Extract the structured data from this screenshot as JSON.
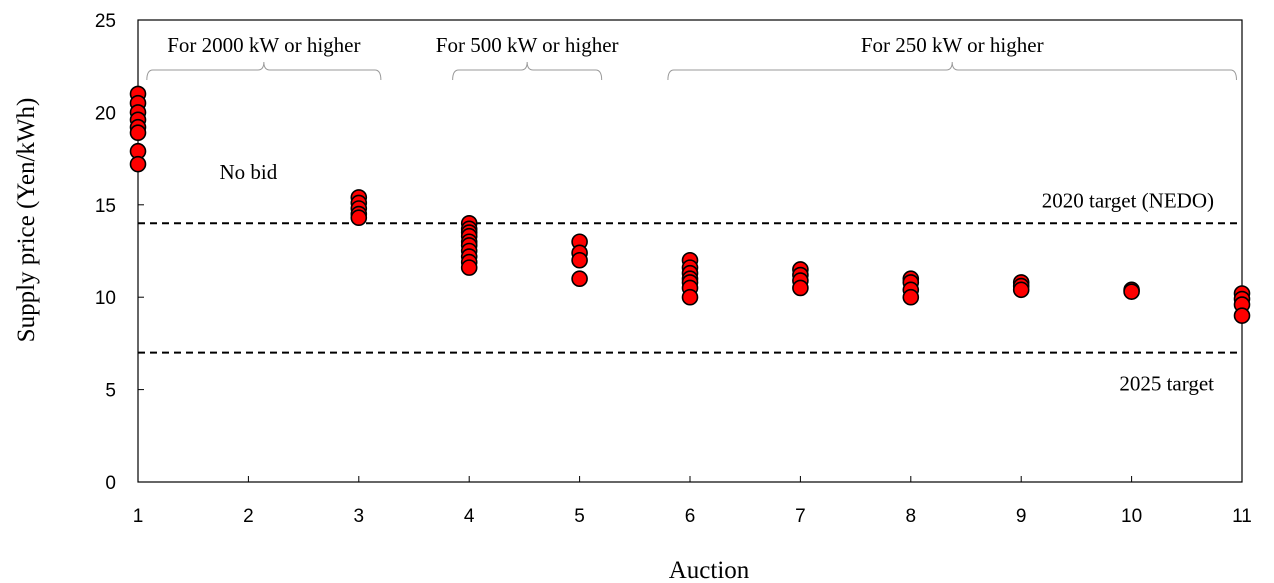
{
  "chart_data": {
    "type": "scatter",
    "xlabel": "Auction",
    "ylabel": "Supply price (Yen/kWh)",
    "xlim": [
      1,
      11
    ],
    "ylim": [
      0,
      25
    ],
    "x_ticks": [
      1,
      2,
      3,
      4,
      5,
      6,
      7,
      8,
      9,
      10,
      11
    ],
    "y_ticks": [
      0,
      5,
      10,
      15,
      20,
      25
    ],
    "grid": false,
    "marker_color": "#ff0000",
    "marker_edge_color": "#000000",
    "series": [
      {
        "points": [
          {
            "x": 1,
            "y": 21.0
          },
          {
            "x": 1,
            "y": 20.5
          },
          {
            "x": 1,
            "y": 20.0
          },
          {
            "x": 1,
            "y": 19.6
          },
          {
            "x": 1,
            "y": 19.2
          },
          {
            "x": 1,
            "y": 18.9
          },
          {
            "x": 1,
            "y": 17.9
          },
          {
            "x": 1,
            "y": 17.2
          },
          {
            "x": 3,
            "y": 15.4
          },
          {
            "x": 3,
            "y": 15.1
          },
          {
            "x": 3,
            "y": 14.8
          },
          {
            "x": 3,
            "y": 14.5
          },
          {
            "x": 3,
            "y": 14.3
          },
          {
            "x": 4,
            "y": 14.0
          },
          {
            "x": 4,
            "y": 13.7
          },
          {
            "x": 4,
            "y": 13.5
          },
          {
            "x": 4,
            "y": 13.3
          },
          {
            "x": 4,
            "y": 13.0
          },
          {
            "x": 4,
            "y": 12.8
          },
          {
            "x": 4,
            "y": 12.5
          },
          {
            "x": 4,
            "y": 12.2
          },
          {
            "x": 4,
            "y": 11.9
          },
          {
            "x": 4,
            "y": 11.6
          },
          {
            "x": 5,
            "y": 13.0
          },
          {
            "x": 5,
            "y": 12.4
          },
          {
            "x": 5,
            "y": 12.0
          },
          {
            "x": 5,
            "y": 11.0
          },
          {
            "x": 6,
            "y": 12.0
          },
          {
            "x": 6,
            "y": 11.6
          },
          {
            "x": 6,
            "y": 11.3
          },
          {
            "x": 6,
            "y": 11.0
          },
          {
            "x": 6,
            "y": 10.8
          },
          {
            "x": 6,
            "y": 10.5
          },
          {
            "x": 6,
            "y": 10.0
          },
          {
            "x": 7,
            "y": 11.5
          },
          {
            "x": 7,
            "y": 11.2
          },
          {
            "x": 7,
            "y": 10.9
          },
          {
            "x": 7,
            "y": 10.5
          },
          {
            "x": 8,
            "y": 11.0
          },
          {
            "x": 8,
            "y": 10.8
          },
          {
            "x": 8,
            "y": 10.4
          },
          {
            "x": 8,
            "y": 10.0
          },
          {
            "x": 9,
            "y": 10.8
          },
          {
            "x": 9,
            "y": 10.6
          },
          {
            "x": 9,
            "y": 10.4
          },
          {
            "x": 10,
            "y": 10.4
          },
          {
            "x": 10,
            "y": 10.3
          },
          {
            "x": 11,
            "y": 10.2
          },
          {
            "x": 11,
            "y": 9.9
          },
          {
            "x": 11,
            "y": 9.6
          },
          {
            "x": 11,
            "y": 9.0
          }
        ]
      }
    ],
    "reference_lines": [
      {
        "y": 14,
        "style": "dashed",
        "label": "2020 target (NEDO)"
      },
      {
        "y": 7,
        "style": "dashed",
        "label": "2025 target"
      }
    ],
    "brackets": [
      {
        "from": 1.08,
        "to": 3.2,
        "label": "For 2000 kW or higher"
      },
      {
        "from": 3.85,
        "to": 5.2,
        "label": "For 500 kW or higher"
      },
      {
        "from": 5.8,
        "to": 10.95,
        "label": "For 250 kW or higher"
      }
    ],
    "annotations": [
      {
        "x": 2,
        "y": 16.5,
        "text": "No bid"
      }
    ]
  }
}
